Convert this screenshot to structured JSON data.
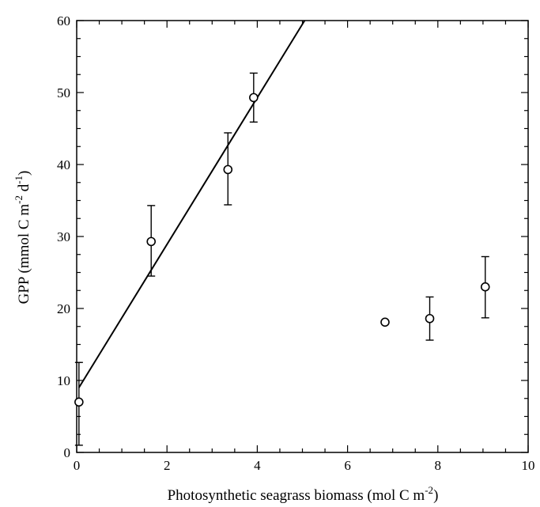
{
  "chart_data": {
    "type": "scatter",
    "xlabel": "Photosynthetic seagrass biomass (mol C m",
    "xlabel_sup": "-2",
    "xlabel_end": ")",
    "ylabel": "GPP (mmol C m",
    "ylabel_sup1": "-2",
    "ylabel_mid": " d",
    "ylabel_sup2": "-1",
    "ylabel_end": ")",
    "xlim": [
      0,
      10
    ],
    "ylim": [
      0,
      60
    ],
    "x_ticks": [
      0,
      2,
      4,
      6,
      8,
      10
    ],
    "y_ticks": [
      0,
      10,
      20,
      30,
      40,
      50,
      60
    ],
    "grid": false,
    "series": [
      {
        "points": [
          {
            "x": 0.05,
            "y": 7.0,
            "err_low": 6.0,
            "err_high": 5.5
          },
          {
            "x": 1.65,
            "y": 29.3,
            "err_low": 4.8,
            "err_high": 5.0
          },
          {
            "x": 3.35,
            "y": 39.3,
            "err_low": 4.9,
            "err_high": 5.1
          },
          {
            "x": 3.92,
            "y": 49.3,
            "err_low": 3.4,
            "err_high": 3.4
          },
          {
            "x": 6.83,
            "y": 18.1,
            "err_low": 0,
            "err_high": 0
          },
          {
            "x": 7.82,
            "y": 18.6,
            "err_low": 3.0,
            "err_high": 3.0
          },
          {
            "x": 9.05,
            "y": 23.0,
            "err_low": 4.3,
            "err_high": 4.2
          }
        ]
      }
    ],
    "fit_line": {
      "slope": 10.2,
      "intercept": 8.5,
      "x_start": 0.05
    }
  }
}
